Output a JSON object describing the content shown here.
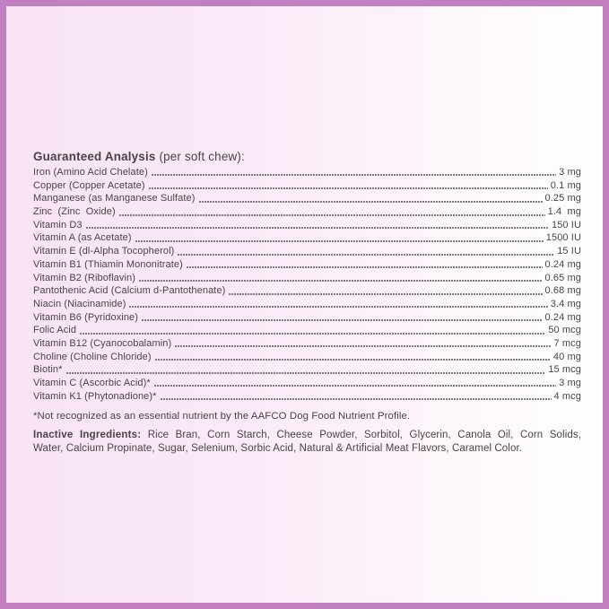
{
  "label": {
    "heading": {
      "title": "Guaranteed Analysis",
      "suffix": " (per soft chew):"
    },
    "analysis_rows": [
      {
        "name": "Iron (Amino Acid Chelate)",
        "value": "3 mg"
      },
      {
        "name": "Copper (Copper Acetate)",
        "value": "0.1 mg"
      },
      {
        "name": "Manganese (as Manganese Sulfate)",
        "value": "0.25 mg"
      },
      {
        "name": "Zinc  (Zinc  Oxide)",
        "value": "1.4  mg"
      },
      {
        "name": "Vitamin D3",
        "value": "150 IU"
      },
      {
        "name": "Vitamin A (as Acetate)",
        "value": "1500 IU"
      },
      {
        "name": "Vitamin E (dl-Alpha Tocopherol)",
        "value": "15 IU"
      },
      {
        "name": "Vitamin B1 (Thiamin Mononitrate)",
        "value": "0.24 mg"
      },
      {
        "name": "Vitamin B2 (Riboflavin)",
        "value": "0.65 mg"
      },
      {
        "name": "Pantothenic Acid (Calcium d-Pantothenate)",
        "value": "0.68 mg"
      },
      {
        "name": "Niacin (Niacinamide)",
        "value": "3.4 mg"
      },
      {
        "name": "Vitamin B6 (Pyridoxine)",
        "value": "0.24 mg"
      },
      {
        "name": "Folic Acid",
        "value": "50 mcg"
      },
      {
        "name": "Vitamin B12 (Cyanocobalamin)",
        "value": "7 mcg"
      },
      {
        "name": "Choline (Choline Chloride)",
        "value": "40 mg"
      },
      {
        "name": "Biotin*",
        "value": "15 mcg"
      },
      {
        "name": "Vitamin C (Ascorbic Acid)*",
        "value": "3 mg"
      },
      {
        "name": "Vitamin K1 (Phytonadione)*",
        "value": "4 mcg"
      }
    ],
    "footnote": "*Not recognized as an essential nutrient by the AAFCO Dog Food Nutrient Profile.",
    "inactive": {
      "label": "Inactive Ingredients:",
      "line1_rest": " Rice Bran, Corn Starch, Cheese Powder, Sorbitol, Glycerin, Canola Oil, Corn Solids,",
      "line2": "Water, Calcium Propinate, Sugar, Selenium, Sorbic Acid, Natural & Artificial Meat Flavors, Caramel Color."
    },
    "colors": {
      "border": "#c27fc1",
      "background_left": "#f8e3f4",
      "background_right": "#ffffff",
      "text": "#4b4348",
      "dots": "#6b6368"
    }
  }
}
